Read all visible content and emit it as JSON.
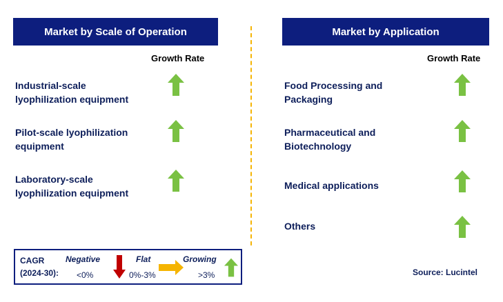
{
  "left_panel": {
    "title": "Market by Scale of Operation",
    "growth_label": "Growth Rate",
    "items": [
      {
        "line1": "Industrial-scale",
        "line2": "lyophilization equipment",
        "trend": "growing"
      },
      {
        "line1": "Pilot-scale lyophilization",
        "line2": "equipment",
        "trend": "growing"
      },
      {
        "line1": "Laboratory-scale",
        "line2": "lyophilization equipment",
        "trend": "growing"
      }
    ]
  },
  "right_panel": {
    "title": "Market by Application",
    "growth_label": "Growth Rate",
    "items": [
      {
        "line1": "Food Processing and",
        "line2": "Packaging",
        "trend": "growing"
      },
      {
        "line1": "Pharmaceutical and",
        "line2": "Biotechnology",
        "trend": "growing"
      },
      {
        "line1": "Medical applications",
        "line2": "",
        "trend": "growing"
      },
      {
        "line1": "Others",
        "line2": "",
        "trend": "growing"
      }
    ]
  },
  "legend": {
    "cagr_line1": "CAGR",
    "cagr_line2": "(2024-30):",
    "negative_label": "Negative",
    "negative_range": "<0%",
    "flat_label": "Flat",
    "flat_range": "0%-3%",
    "growing_label": "Growing",
    "growing_range": ">3%"
  },
  "source": "Source: Lucintel",
  "colors": {
    "header_bg": "#0d1e7e",
    "text": "#0d1e5a",
    "growing_arrow": "#7ac143",
    "negative_arrow": "#c00000",
    "flat_arrow": "#f5b400",
    "divider": "#f5b400"
  },
  "icons": {
    "growing": "up-arrow-icon",
    "negative": "down-arrow-icon",
    "flat": "right-arrow-icon"
  }
}
